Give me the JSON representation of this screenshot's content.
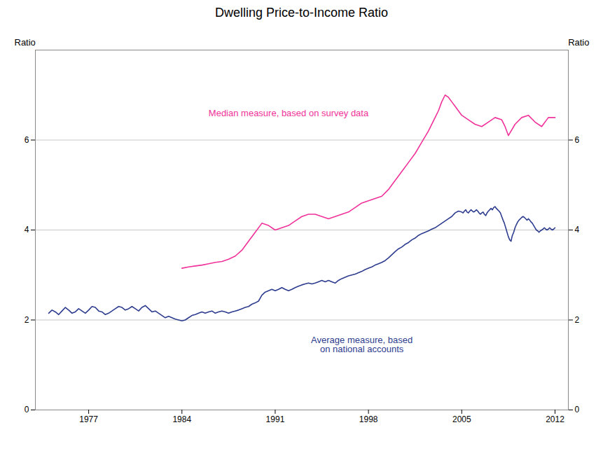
{
  "chart_data": {
    "type": "line",
    "title": "Dwelling Price-to-Income Ratio",
    "ylabel": "Ratio",
    "y2label": "Ratio",
    "xlim": [
      1973.0,
      2013.0
    ],
    "xticks": [
      1977,
      1984,
      1991,
      1998,
      2005,
      2012
    ],
    "ylim": [
      0,
      8
    ],
    "yticks": [
      0,
      2,
      4,
      6
    ],
    "y2lim": [
      0,
      8
    ],
    "y2ticks": [
      0,
      2,
      4,
      6
    ],
    "grid": true,
    "series": [
      {
        "color": "#f0329a",
        "x": [
          1984.0,
          1984.5,
          1985.0,
          1985.5,
          1986.0,
          1986.5,
          1987.0,
          1987.5,
          1988.0,
          1988.5,
          1989.0,
          1989.5,
          1990.0,
          1990.5,
          1991.0,
          1991.5,
          1992.0,
          1992.5,
          1993.0,
          1993.5,
          1994.0,
          1994.5,
          1995.0,
          1995.5,
          1996.0,
          1996.5,
          1997.0,
          1997.5,
          1998.0,
          1998.5,
          1999.0,
          1999.5,
          2000.0,
          2000.5,
          2001.0,
          2001.5,
          2002.0,
          2002.5,
          2003.0,
          2003.25,
          2003.5,
          2003.75,
          2004.0,
          2004.25,
          2004.5,
          2004.75,
          2005.0,
          2005.5,
          2006.0,
          2006.5,
          2007.0,
          2007.5,
          2008.0,
          2008.25,
          2008.5,
          2009.0,
          2009.5,
          2010.0,
          2010.5,
          2011.0,
          2011.5,
          2012.0
        ],
        "values": [
          3.15,
          3.18,
          3.2,
          3.22,
          3.25,
          3.28,
          3.3,
          3.35,
          3.42,
          3.55,
          3.75,
          3.95,
          4.15,
          4.1,
          4.0,
          4.05,
          4.1,
          4.2,
          4.3,
          4.35,
          4.35,
          4.3,
          4.25,
          4.3,
          4.35,
          4.4,
          4.5,
          4.6,
          4.65,
          4.7,
          4.75,
          4.9,
          5.1,
          5.3,
          5.5,
          5.7,
          5.95,
          6.2,
          6.5,
          6.65,
          6.85,
          7.0,
          6.95,
          6.85,
          6.75,
          6.65,
          6.55,
          6.45,
          6.35,
          6.3,
          6.4,
          6.5,
          6.45,
          6.3,
          6.1,
          6.35,
          6.5,
          6.55,
          6.4,
          6.3,
          6.5,
          6.5
        ]
      },
      {
        "color": "#2e3d8f",
        "x": [
          1974.0,
          1974.25,
          1974.5,
          1974.75,
          1975.0,
          1975.25,
          1975.5,
          1975.75,
          1976.0,
          1976.25,
          1976.5,
          1976.75,
          1977.0,
          1977.25,
          1977.5,
          1977.75,
          1978.0,
          1978.25,
          1978.5,
          1978.75,
          1979.0,
          1979.25,
          1979.5,
          1979.75,
          1980.0,
          1980.25,
          1980.5,
          1980.75,
          1981.0,
          1981.25,
          1981.5,
          1981.75,
          1982.0,
          1982.25,
          1982.5,
          1982.75,
          1983.0,
          1983.25,
          1983.5,
          1983.75,
          1984.0,
          1984.25,
          1984.5,
          1984.75,
          1985.0,
          1985.25,
          1985.5,
          1985.75,
          1986.0,
          1986.25,
          1986.5,
          1986.75,
          1987.0,
          1987.25,
          1987.5,
          1987.75,
          1988.0,
          1988.25,
          1988.5,
          1988.75,
          1989.0,
          1989.25,
          1989.5,
          1989.75,
          1990.0,
          1990.25,
          1990.5,
          1990.75,
          1991.0,
          1991.25,
          1991.5,
          1991.75,
          1992.0,
          1992.25,
          1992.5,
          1992.75,
          1993.0,
          1993.25,
          1993.5,
          1993.75,
          1994.0,
          1994.25,
          1994.5,
          1994.75,
          1995.0,
          1995.25,
          1995.5,
          1995.75,
          1996.0,
          1996.25,
          1996.5,
          1996.75,
          1997.0,
          1997.25,
          1997.5,
          1997.75,
          1998.0,
          1998.25,
          1998.5,
          1998.75,
          1999.0,
          1999.25,
          1999.5,
          1999.75,
          2000.0,
          2000.25,
          2000.5,
          2000.75,
          2001.0,
          2001.25,
          2001.5,
          2001.75,
          2002.0,
          2002.25,
          2002.5,
          2002.75,
          2003.0,
          2003.25,
          2003.5,
          2003.75,
          2004.0,
          2004.25,
          2004.5,
          2004.75,
          2005.0,
          2005.1,
          2005.2,
          2005.3,
          2005.4,
          2005.5,
          2005.6,
          2005.7,
          2005.8,
          2005.9,
          2006.0,
          2006.1,
          2006.2,
          2006.3,
          2006.4,
          2006.5,
          2006.6,
          2006.7,
          2006.8,
          2006.9,
          2007.0,
          2007.1,
          2007.2,
          2007.3,
          2007.4,
          2007.5,
          2007.6,
          2007.7,
          2007.8,
          2007.9,
          2008.0,
          2008.1,
          2008.2,
          2008.3,
          2008.4,
          2008.5,
          2008.6,
          2008.7,
          2008.75,
          2008.8,
          2008.9,
          2009.0,
          2009.1,
          2009.2,
          2009.3,
          2009.4,
          2009.5,
          2009.6,
          2009.7,
          2009.8,
          2009.9,
          2010.0,
          2010.1,
          2010.2,
          2010.3,
          2010.4,
          2010.5,
          2010.6,
          2010.7,
          2010.8,
          2010.9,
          2011.0,
          2011.1,
          2011.2,
          2011.3,
          2011.4,
          2011.5,
          2011.6,
          2011.7,
          2011.8,
          2011.9,
          2012.0
        ],
        "values": [
          2.15,
          2.22,
          2.18,
          2.12,
          2.2,
          2.28,
          2.22,
          2.15,
          2.18,
          2.25,
          2.2,
          2.15,
          2.22,
          2.3,
          2.28,
          2.2,
          2.18,
          2.12,
          2.15,
          2.2,
          2.25,
          2.3,
          2.28,
          2.22,
          2.25,
          2.3,
          2.25,
          2.2,
          2.28,
          2.32,
          2.25,
          2.18,
          2.2,
          2.15,
          2.1,
          2.05,
          2.08,
          2.05,
          2.02,
          2.0,
          1.98,
          2.0,
          2.05,
          2.1,
          2.12,
          2.15,
          2.18,
          2.15,
          2.18,
          2.2,
          2.15,
          2.18,
          2.2,
          2.18,
          2.15,
          2.18,
          2.2,
          2.22,
          2.25,
          2.28,
          2.3,
          2.35,
          2.38,
          2.42,
          2.55,
          2.62,
          2.65,
          2.68,
          2.65,
          2.68,
          2.72,
          2.68,
          2.65,
          2.68,
          2.72,
          2.75,
          2.78,
          2.8,
          2.82,
          2.8,
          2.82,
          2.85,
          2.88,
          2.85,
          2.88,
          2.85,
          2.82,
          2.88,
          2.92,
          2.95,
          2.98,
          3.0,
          3.02,
          3.05,
          3.08,
          3.12,
          3.15,
          3.18,
          3.22,
          3.25,
          3.28,
          3.32,
          3.38,
          3.45,
          3.52,
          3.58,
          3.62,
          3.68,
          3.72,
          3.78,
          3.82,
          3.88,
          3.92,
          3.95,
          3.98,
          4.02,
          4.05,
          4.1,
          4.15,
          4.2,
          4.25,
          4.3,
          4.38,
          4.42,
          4.4,
          4.38,
          4.42,
          4.45,
          4.4,
          4.38,
          4.42,
          4.45,
          4.42,
          4.4,
          4.42,
          4.45,
          4.42,
          4.38,
          4.35,
          4.38,
          4.4,
          4.35,
          4.32,
          4.38,
          4.42,
          4.45,
          4.48,
          4.45,
          4.5,
          4.52,
          4.48,
          4.45,
          4.42,
          4.38,
          4.3,
          4.22,
          4.15,
          4.05,
          3.95,
          3.85,
          3.78,
          3.75,
          3.82,
          3.88,
          3.95,
          4.05,
          4.12,
          4.18,
          4.22,
          4.25,
          4.28,
          4.3,
          4.28,
          4.25,
          4.22,
          4.25,
          4.22,
          4.18,
          4.15,
          4.1,
          4.05,
          4.0,
          3.98,
          3.95,
          3.98,
          4.0,
          4.02,
          4.05,
          4.02,
          4.0,
          4.02,
          4.05,
          4.02,
          4.0,
          4.02,
          4.05
        ]
      }
    ],
    "annotations": [
      {
        "text": "Median measure, based on survey data",
        "x": 1986.0,
        "y": 6.6,
        "color": "#f0329a"
      },
      {
        "text": "Average measure, based\non national accounts",
        "x": 1997.5,
        "y": 1.45,
        "color": "#2e3d8f"
      }
    ]
  }
}
